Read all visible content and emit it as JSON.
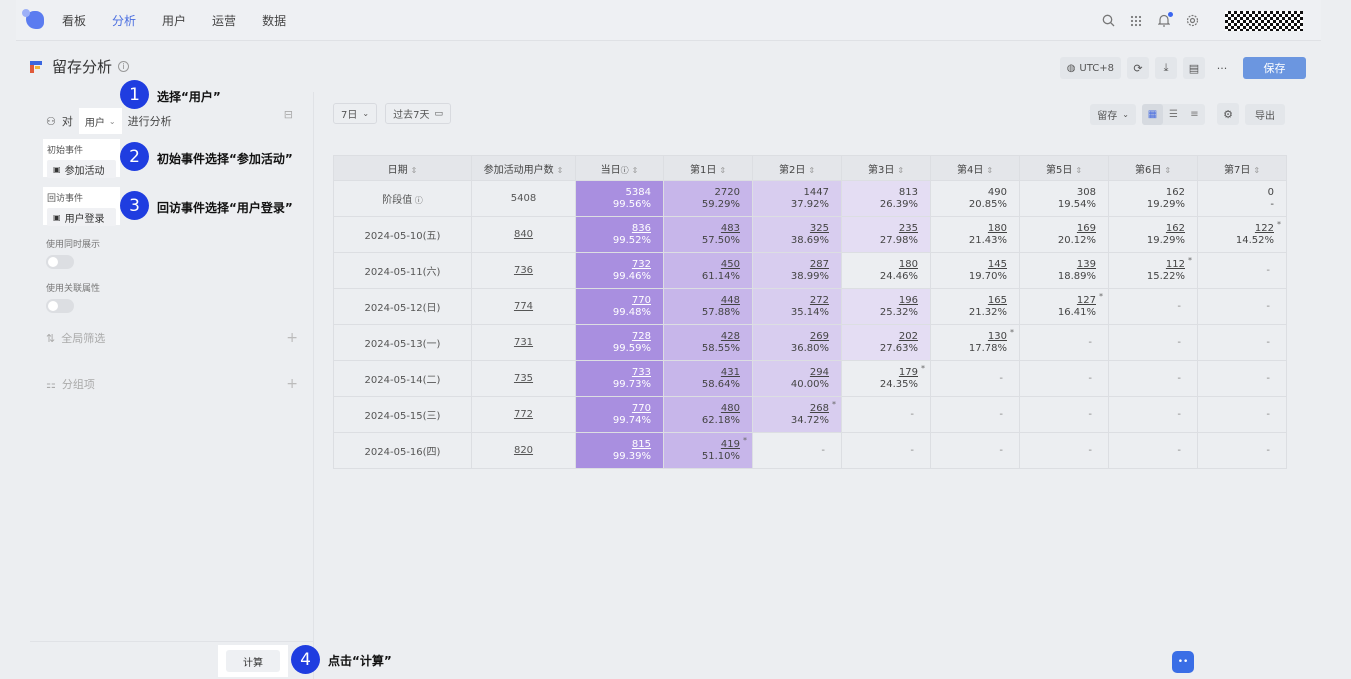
{
  "nav": {
    "items": [
      "看板",
      "分析",
      "用户",
      "运营",
      "数据"
    ],
    "active": "分析"
  },
  "page": {
    "title": "留存分析"
  },
  "header": {
    "timezone": "UTC+8",
    "save_label": "保存",
    "more": "···"
  },
  "left": {
    "analyze_prefix": "对",
    "subject_value": "用户",
    "analyze_suffix": "进行分析",
    "initial_event_label": "初始事件",
    "initial_event_value": "参加活动",
    "return_event_label": "回访事件",
    "return_event_value": "用户登录",
    "toggle1_label": "使用同时展示",
    "toggle2_label": "使用关联属性",
    "global_filter": "全局筛选",
    "group": "分组项",
    "calc_label": "计算"
  },
  "callouts": [
    {
      "n": "1",
      "text": "选择“用户”"
    },
    {
      "n": "2",
      "text": "初始事件选择“参加活动”"
    },
    {
      "n": "3",
      "text": "回访事件选择“用户登录”"
    },
    {
      "n": "4",
      "text": "点击“计算”"
    }
  ],
  "toolbar": {
    "granularity": "7日",
    "range": "过去7天",
    "metric": "留存",
    "export": "导出"
  },
  "colors": {
    "accent": "#4a6ee0",
    "save": "#6b96e0",
    "day0": "#a98fe0",
    "high": "#c7b6ea",
    "mid": "#d8cdef",
    "callout": "#1f3de0"
  },
  "table": {
    "headers": [
      "日期",
      "参加活动用户数",
      "当日",
      "第1日",
      "第2日",
      "第3日",
      "第4日",
      "第5日",
      "第6日",
      "第7日"
    ],
    "rows": [
      {
        "date": "阶段值",
        "users": "5408",
        "cells": [
          [
            "5384",
            "99.56%"
          ],
          [
            "2720",
            "59.29%"
          ],
          [
            "1447",
            "37.92%"
          ],
          [
            "813",
            "26.39%"
          ],
          [
            "490",
            "20.85%"
          ],
          [
            "308",
            "19.54%"
          ],
          [
            "162",
            "19.29%"
          ],
          [
            "0",
            "-"
          ]
        ]
      },
      {
        "date": "2024-05-10(五)",
        "users": "840",
        "cells": [
          [
            "836",
            "99.52%"
          ],
          [
            "483",
            "57.50%"
          ],
          [
            "325",
            "38.69%"
          ],
          [
            "235",
            "27.98%"
          ],
          [
            "180",
            "21.43%"
          ],
          [
            "169",
            "20.12%"
          ],
          [
            "162",
            "19.29%"
          ],
          [
            "122",
            "14.52%"
          ]
        ]
      },
      {
        "date": "2024-05-11(六)",
        "users": "736",
        "cells": [
          [
            "732",
            "99.46%"
          ],
          [
            "450",
            "61.14%"
          ],
          [
            "287",
            "38.99%"
          ],
          [
            "180",
            "24.46%"
          ],
          [
            "145",
            "19.70%"
          ],
          [
            "139",
            "18.89%"
          ],
          [
            "112",
            "15.22%"
          ],
          null
        ]
      },
      {
        "date": "2024-05-12(日)",
        "users": "774",
        "cells": [
          [
            "770",
            "99.48%"
          ],
          [
            "448",
            "57.88%"
          ],
          [
            "272",
            "35.14%"
          ],
          [
            "196",
            "25.32%"
          ],
          [
            "165",
            "21.32%"
          ],
          [
            "127",
            "16.41%"
          ],
          null,
          null
        ]
      },
      {
        "date": "2024-05-13(一)",
        "users": "731",
        "cells": [
          [
            "728",
            "99.59%"
          ],
          [
            "428",
            "58.55%"
          ],
          [
            "269",
            "36.80%"
          ],
          [
            "202",
            "27.63%"
          ],
          [
            "130",
            "17.78%"
          ],
          null,
          null,
          null
        ]
      },
      {
        "date": "2024-05-14(二)",
        "users": "735",
        "cells": [
          [
            "733",
            "99.73%"
          ],
          [
            "431",
            "58.64%"
          ],
          [
            "294",
            "40.00%"
          ],
          [
            "179",
            "24.35%"
          ],
          null,
          null,
          null,
          null
        ]
      },
      {
        "date": "2024-05-15(三)",
        "users": "772",
        "cells": [
          [
            "770",
            "99.74%"
          ],
          [
            "480",
            "62.18%"
          ],
          [
            "268",
            "34.72%"
          ],
          null,
          null,
          null,
          null,
          null
        ]
      },
      {
        "date": "2024-05-16(四)",
        "users": "820",
        "cells": [
          [
            "815",
            "99.39%"
          ],
          [
            "419",
            "51.10%"
          ],
          null,
          null,
          null,
          null,
          null,
          null
        ]
      }
    ]
  }
}
